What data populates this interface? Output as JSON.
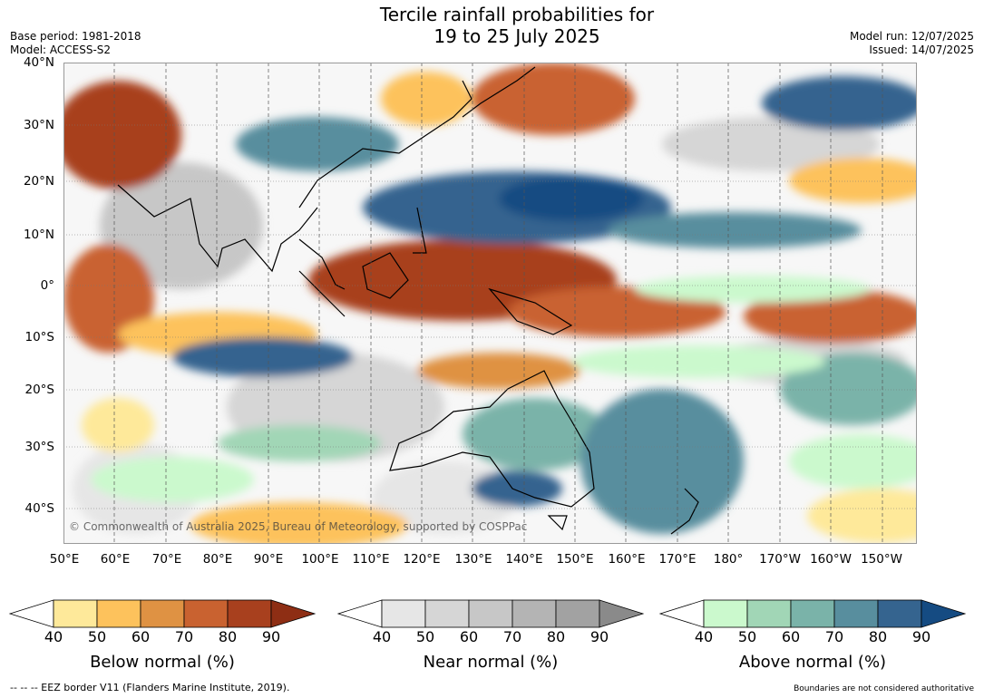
{
  "title_line1": "Tercile rainfall probabilities for",
  "title_line2": "19 to 25 July 2025",
  "meta_left": [
    "Base period: 1981-2018",
    "Model: ACCESS-S2"
  ],
  "meta_right": [
    "Model run: 12/07/2025",
    "Issued: 14/07/2025"
  ],
  "lat_ticks": [
    "40°N",
    "30°N",
    "20°N",
    "10°N",
    "0°",
    "10°S",
    "20°S",
    "30°S",
    "40°S"
  ],
  "lon_ticks": [
    "50°E",
    "60°E",
    "70°E",
    "80°E",
    "90°E",
    "100°E",
    "110°E",
    "120°E",
    "130°E",
    "140°E",
    "150°E",
    "160°E",
    "170°E",
    "180°",
    "170°W",
    "160°W",
    "150°W"
  ],
  "copyright": "© Commonwealth of Australia 2025, Bureau of Meteorology, supported by COSPPac",
  "legends": [
    {
      "label": "Below normal (%)",
      "ticks": [
        "40",
        "50",
        "60",
        "70",
        "80",
        "90"
      ],
      "colors": [
        "#fee99a",
        "#fdc25c",
        "#df9243",
        "#c96230",
        "#a8401e",
        "#8e2e14"
      ]
    },
    {
      "label": "Near normal (%)",
      "ticks": [
        "40",
        "50",
        "60",
        "70",
        "80",
        "90"
      ],
      "colors": [
        "#e6e6e6",
        "#d6d6d6",
        "#c7c7c7",
        "#b4b4b4",
        "#a2a2a2",
        "#8a8a8a"
      ]
    },
    {
      "label": "Above normal (%)",
      "ticks": [
        "40",
        "50",
        "60",
        "70",
        "80",
        "90"
      ],
      "colors": [
        "#cbf9cd",
        "#a1d6b6",
        "#7ab3a9",
        "#588e9e",
        "#35648f",
        "#154b82"
      ]
    }
  ],
  "footer_left": "--  --  -- EEZ border V11 (Flanders Marine Institute, 2019).",
  "footer_right": "Boundaries are not considered authoritative"
}
